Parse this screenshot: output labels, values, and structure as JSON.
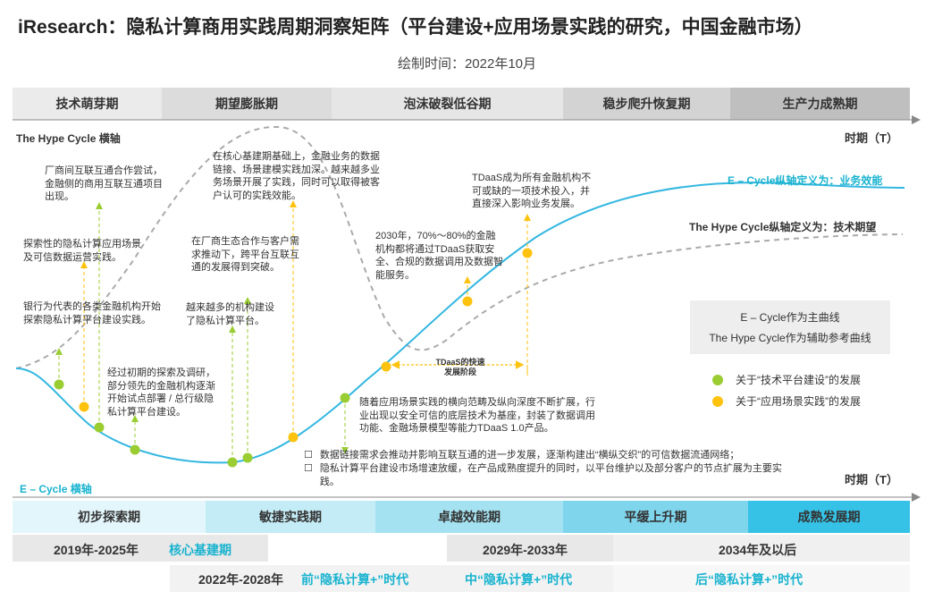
{
  "header": {
    "title": "iResearch：隐私计算商用实践周期洞察矩阵（平台建设+应用场景实践的研究，中国金融市场）",
    "subtitle": "绘制时间：2022年10月"
  },
  "top_phases": [
    "技术萌芽期",
    "期望膨胀期",
    "泡沫破裂低谷期",
    "稳步爬升恢复期",
    "生产力成熟期"
  ],
  "bottom_phases": [
    "初步探索期",
    "敏捷实践期",
    "卓越效能期",
    "平缓上升期",
    "成熟发展期"
  ],
  "axis": {
    "hype_axis": "The Hype Cycle 横轴",
    "ecycle_axis": "E – Cycle 横轴",
    "time_top": "时期（T）",
    "time_bottom": "时期（T）"
  },
  "curve_labels": {
    "ecycle": "E – Cycle纵轴定义为：",
    "ecycle_value": "业务效能",
    "hype": "The Hype Cycle纵轴定义为：",
    "hype_value": "技术期望"
  },
  "legend": {
    "main": "E – Cycle作为主曲线",
    "aux": "The Hype Cycle作为辅助参考曲线",
    "green": "关于“技术平台建设”的发展",
    "yellow": "关于“应用场景实践”的发展",
    "colors": {
      "green": "#9acd32",
      "yellow": "#ffc20e",
      "ecycle": "#33b7e0",
      "hype": "#aaaaaa"
    }
  },
  "annotations": {
    "a1": "厂商间互联互通合作尝试，金融侧的商用互联互通项目出现。",
    "a2": "探索性的隐私计算应用场景及可信数据运营实践。",
    "a3": "银行为代表的各类金融机构开始探索隐私计算平台建设实践。",
    "a4": "经过初期的探索及调研，部分领先的金融机构逐渐开始试点部署 / 总行级隐私计算平台建设。",
    "a5": "在核心基建期基础上，金融业务的数据链接、场景建模实践加深。越来越多业务场景开展了实践，同时可以取得被客户认可的实践效能。",
    "a6": "在厂商生态合作与客户需求推动下，跨平台互联互通的发展得到突破。",
    "a7": "越来越多的机构建设了隐私计算平台。",
    "a8": "2030年，70%～80%的金融机构都将通过TDaaS获取安全、合规的数据调用及数据智能服务。",
    "a9": "TDaaS成为所有金融机构不可或缺的一项技术投入，并直接深入影响业务发展。",
    "a10": "随着应用场景实践的横向范畴及纵向深度不断扩展，行业出现以安全可信的底层技术为基座，封装了数据调用功能、金融场景模型等能力TDaaS 1.0产品。",
    "tdaas_stage": "TDaaS的快速发展阶段",
    "bullet1": "数据链接需求会推动并影响互联互通的进一步发展，逐渐构建出“横纵交织”的可信数据流通网络；",
    "bullet2": "隐私计算平台建设市场增速放缓，在产品成熟度提升的同时，以平台维护以及部分客户的节点扩展为主要实践。"
  },
  "eras": {
    "e1_years": "2019年-2025年",
    "e1_name": "核心基建期",
    "e2_years": "2022年-2028年",
    "e2_name": "前“隐私计算+”时代",
    "e3_years": "2029年-2033年",
    "e3_name": "中“隐私计算+”时代",
    "e4_years": "2034年及以后",
    "e4_name": "后“隐私计算+”时代"
  },
  "chart_data": {
    "type": "line",
    "x_axis": "时期（T）",
    "series": [
      {
        "name": "E – Cycle",
        "y_axis": "业务效能"
      },
      {
        "name": "The Hype Cycle",
        "y_axis": "技术期望"
      }
    ],
    "legend": [
      "关于“技术平台建设”的发展",
      "关于“应用场景实践”的发展"
    ]
  }
}
